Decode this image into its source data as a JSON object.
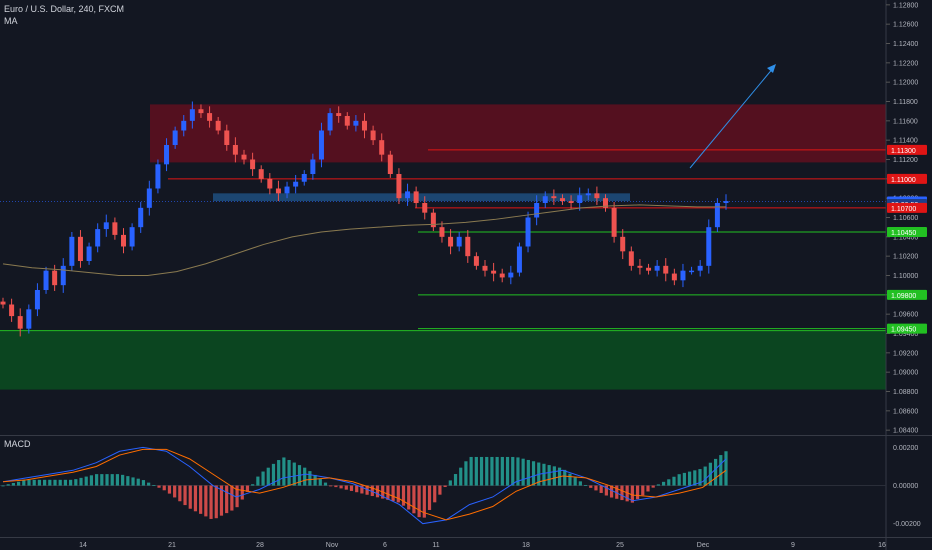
{
  "header": {
    "symbol_line": "Euro / U.S. Dollar, 240, FXCM",
    "indicator": "MA"
  },
  "macd_panel": {
    "label": "MACD"
  },
  "colors": {
    "background": "#131722",
    "up_candle": "#2962ff",
    "down_candle": "#ef5350",
    "resistance_zone": "#6b0f1f",
    "support_zone": "#0b4a20",
    "support_line": "#22c022",
    "resistance_line": "#e01515",
    "ma_line": "#8a7a50",
    "arrow": "#2f8fe8",
    "macd_hist_up": "#26a69a",
    "macd_hist_down": "#ef5350",
    "macd_line": "#2962ff",
    "signal_line": "#ff6d00"
  },
  "icons": {
    "projection": "arrow-up-right-icon"
  },
  "chart_data": [
    {
      "type": "candlestick",
      "title": "Euro / U.S. Dollar, 240, FXCM",
      "y_axis_side": "right",
      "ylim": [
        1.0835,
        1.1285
      ],
      "y_ticks": [
        "1.12800",
        "1.12600",
        "1.12400",
        "1.12200",
        "1.12000",
        "1.11800",
        "1.11600",
        "1.11400",
        "1.11200",
        "1.11000",
        "1.10800",
        "1.10600",
        "1.10400",
        "1.10200",
        "1.10000",
        "1.09800",
        "1.09600",
        "1.09400",
        "1.09200",
        "1.09000",
        "1.08800",
        "1.08600",
        "1.08400"
      ],
      "x_ticks": [
        "14",
        "21",
        "28",
        "Nov",
        "6",
        "11",
        "18",
        "25",
        "Dec",
        "9",
        "16"
      ],
      "price_labels": [
        {
          "text": "1.11300",
          "value": 1.113,
          "kind": "resistance"
        },
        {
          "text": "1.11000",
          "value": 1.11,
          "kind": "resistance"
        },
        {
          "text": "1.10766",
          "value": 1.10766,
          "kind": "current"
        },
        {
          "text": "02:20:53",
          "value": 1.1074,
          "kind": "countdown"
        },
        {
          "text": "1.10700",
          "value": 1.107,
          "kind": "resistance"
        },
        {
          "text": "1.10450",
          "value": 1.1045,
          "kind": "support"
        },
        {
          "text": "1.09800",
          "value": 1.098,
          "kind": "support"
        },
        {
          "text": "1.09450",
          "value": 1.0945,
          "kind": "support"
        }
      ],
      "zones": [
        {
          "name": "resistance-zone",
          "from": 1.1117,
          "to": 1.1177
        },
        {
          "name": "blue-zone",
          "from": 1.1077,
          "to": 1.1085
        },
        {
          "name": "support-zone",
          "from": 1.0882,
          "to": 1.0943
        }
      ],
      "indicator": "MA",
      "price_path": [
        1.097,
        1.0958,
        1.0945,
        1.0965,
        1.0985,
        1.1005,
        1.099,
        1.101,
        1.104,
        1.1015,
        1.103,
        1.1048,
        1.1055,
        1.1042,
        1.103,
        1.105,
        1.107,
        1.109,
        1.1115,
        1.1135,
        1.115,
        1.116,
        1.1172,
        1.1168,
        1.116,
        1.115,
        1.1135,
        1.1125,
        1.112,
        1.111,
        1.11,
        1.109,
        1.1085,
        1.1092,
        1.1097,
        1.1105,
        1.112,
        1.115,
        1.1168,
        1.1165,
        1.1155,
        1.116,
        1.115,
        1.114,
        1.1125,
        1.1105,
        1.108,
        1.1087,
        1.1075,
        1.1065,
        1.105,
        1.104,
        1.103,
        1.104,
        1.102,
        1.101,
        1.1005,
        1.1002,
        1.0998,
        1.1003,
        1.103,
        1.106,
        1.1075,
        1.1082,
        1.108,
        1.1077,
        1.1075,
        1.1083,
        1.1085,
        1.108,
        1.107,
        1.104,
        1.1025,
        1.101,
        1.1008,
        1.1005,
        1.101,
        1.1002,
        1.0995,
        1.1005,
        1.1005,
        1.101,
        1.105,
        1.1075,
        1.1077
      ],
      "ma_path": [
        1.1012,
        1.1008,
        1.1006,
        1.1003,
        1.1,
        1.1,
        1.1004,
        1.1012,
        1.1022,
        1.1032,
        1.104,
        1.1045,
        1.1048,
        1.105,
        1.1052,
        1.1053,
        1.1055,
        1.1058,
        1.1062,
        1.1066,
        1.107,
        1.1072,
        1.1073,
        1.1072,
        1.1071,
        1.1071
      ]
    },
    {
      "type": "macd",
      "title": "MACD",
      "ylim": [
        -0.0027,
        0.0026
      ],
      "y_ticks": [
        "0.00200",
        "0.00000",
        "-0.00200"
      ],
      "macd_line": [
        0.0002,
        0.0004,
        0.0006,
        0.0008,
        0.0012,
        0.0018,
        0.002,
        0.0018,
        0.001,
        0.0,
        -0.0006,
        -0.0002,
        0.0004,
        0.0006,
        0.0004,
        0.0001,
        -0.0004,
        -0.001,
        -0.002,
        -0.0018,
        -0.001,
        -0.0006,
        0.0002,
        0.0006,
        0.0008,
        0.0004,
        -0.0002,
        -0.0008,
        -0.0006,
        -0.0002,
        0.0002,
        0.0014
      ],
      "signal_line": [
        0.0002,
        0.0003,
        0.0005,
        0.0007,
        0.001,
        0.0016,
        0.0019,
        0.0019,
        0.0014,
        0.0006,
        -0.0002,
        -0.0004,
        -0.0001,
        0.0003,
        0.0004,
        0.0002,
        -0.0002,
        -0.0007,
        -0.0014,
        -0.0018,
        -0.0015,
        -0.0011,
        -0.0003,
        0.0002,
        0.0005,
        0.0004,
        0.0,
        -0.0005,
        -0.0006,
        -0.0004,
        -0.0001,
        0.0008
      ]
    }
  ]
}
